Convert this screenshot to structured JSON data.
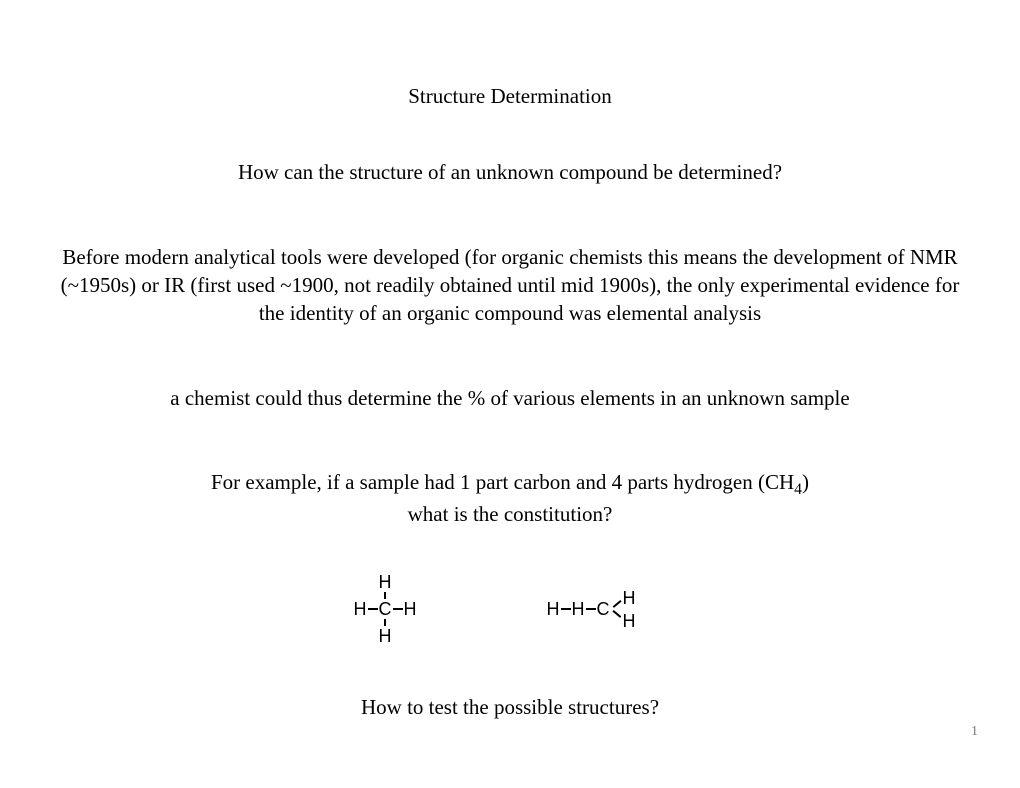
{
  "title": "Structure Determination",
  "question": "How can the structure of an unknown compound be determined?",
  "paragraph": "Before modern analytical tools were developed (for organic chemists this means the development of NMR (~1950s) or IR (first used ~1900, not readily obtained until mid 1900s), the only experimental evidence for the identity of an organic compound was elemental analysis",
  "statement": "a chemist could thus determine the % of various elements in an unknown sample",
  "example_pre": "For example, if a sample had 1 part carbon and 4 parts hydrogen (CH",
  "example_sub": "4",
  "example_post": ")",
  "constitution_q": "what is the constitution?",
  "test_q": "How to test the possible structures?",
  "page_number": "1",
  "atoms": {
    "H": "H",
    "C": "C"
  },
  "colors": {
    "text": "#000000",
    "background": "#ffffff",
    "page_num": "#7a7a7a"
  },
  "typography": {
    "body_family": "Times New Roman",
    "body_size_pt": 16,
    "mol_family": "Arial",
    "mol_size_pt": 13
  }
}
